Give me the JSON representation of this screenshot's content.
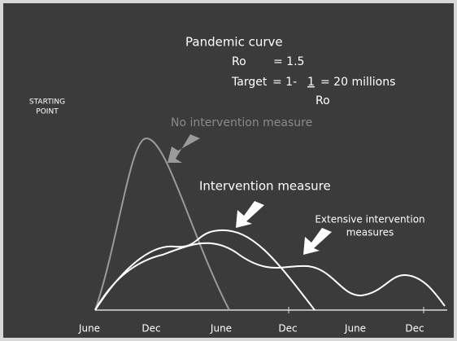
{
  "title": "Pandemic curve",
  "ro": {
    "label": "Ro",
    "value": "= 1.5"
  },
  "target": {
    "label": "Target",
    "pre": "= 1-",
    "numerator": "1",
    "post": "= 20 millions",
    "denominator": "Ro"
  },
  "starting_point": [
    "STARTING",
    "POINT"
  ],
  "annotations": {
    "no_intervention": "No intervention measure",
    "intervention": "Intervention measure",
    "extensive": [
      "Extensive intervention",
      "measures"
    ]
  },
  "x_labels": [
    "June",
    "Dec",
    "June",
    "Dec",
    "June",
    "Dec"
  ]
}
